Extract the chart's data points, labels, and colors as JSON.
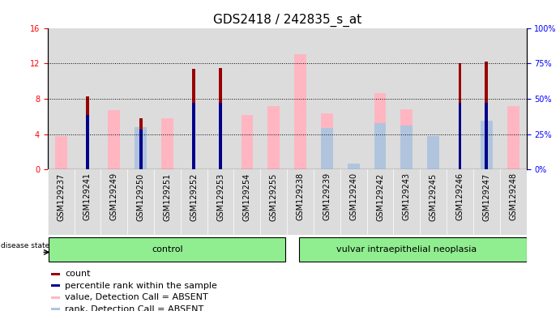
{
  "title": "GDS2418 / 242835_s_at",
  "samples": [
    "GSM129237",
    "GSM129241",
    "GSM129249",
    "GSM129250",
    "GSM129251",
    "GSM129252",
    "GSM129253",
    "GSM129254",
    "GSM129255",
    "GSM129238",
    "GSM129239",
    "GSM129240",
    "GSM129242",
    "GSM129243",
    "GSM129245",
    "GSM129246",
    "GSM129247",
    "GSM129248"
  ],
  "count_values": [
    0,
    8.3,
    0,
    5.8,
    0,
    11.4,
    11.5,
    0,
    0,
    0,
    0,
    0,
    0,
    0,
    0,
    12.0,
    12.2,
    0
  ],
  "percentile_values": [
    0,
    6.2,
    0,
    4.5,
    0,
    7.5,
    7.5,
    0,
    0,
    0,
    0,
    0,
    0,
    0,
    0,
    7.5,
    7.5,
    0
  ],
  "absent_value": [
    3.8,
    0,
    6.7,
    0,
    5.8,
    0,
    0,
    6.2,
    7.2,
    13.0,
    6.3,
    0,
    8.6,
    6.8,
    0,
    0,
    0,
    7.2
  ],
  "absent_rank": [
    0,
    0,
    0,
    4.8,
    0,
    0,
    0,
    0,
    0,
    0,
    4.7,
    0.7,
    5.2,
    5.0,
    3.8,
    0,
    5.5,
    0
  ],
  "control_count": 9,
  "ylim_left": [
    0,
    16
  ],
  "ylim_right": [
    0,
    100
  ],
  "yticks_left": [
    0,
    4,
    8,
    12,
    16
  ],
  "yticks_right": [
    0,
    25,
    50,
    75,
    100
  ],
  "count_color": "#9B0000",
  "percentile_color": "#00008B",
  "absent_value_color": "#FFB6C1",
  "absent_rank_color": "#B0C4DE",
  "bg_color": "#FFFFFF",
  "plot_bg_color": "#FFFFFF",
  "col_bg_color": "#DCDCDC",
  "legend_items": [
    {
      "label": "count",
      "color": "#9B0000"
    },
    {
      "label": "percentile rank within the sample",
      "color": "#00008B"
    },
    {
      "label": "value, Detection Call = ABSENT",
      "color": "#FFB6C1"
    },
    {
      "label": "rank, Detection Call = ABSENT",
      "color": "#B0C4DE"
    }
  ],
  "title_fontsize": 11,
  "tick_fontsize": 7,
  "label_fontsize": 8,
  "group_fontsize": 8
}
